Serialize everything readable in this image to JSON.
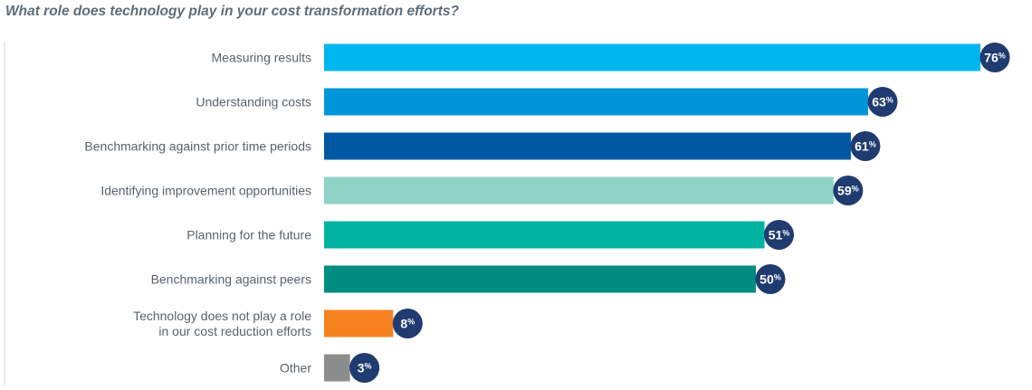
{
  "chart_data": {
    "type": "bar",
    "orientation": "horizontal",
    "title": "What role does technology play in your cost transformation efforts?",
    "categories": [
      "Measuring results",
      "Understanding costs",
      "Benchmarking against prior time periods",
      "Identifying improvement opportunities",
      "Planning for the future",
      "Benchmarking against peers",
      "Technology does not play a role\nin our cost reduction efforts",
      "Other"
    ],
    "values": [
      76,
      63,
      61,
      59,
      51,
      50,
      8,
      3
    ],
    "value_labels": [
      "76",
      "63",
      "61",
      "59",
      "51",
      "50",
      "8",
      "3"
    ],
    "value_suffix": "%",
    "bar_colors": [
      "#00b6ef",
      "#0095d9",
      "#0058a3",
      "#8fd3c6",
      "#00b3a1",
      "#008c80",
      "#f5821f",
      "#8a8c8e"
    ],
    "badge_color": "#1f3b6f",
    "xlim": [
      0,
      100
    ],
    "grid": false,
    "legend": "none"
  }
}
